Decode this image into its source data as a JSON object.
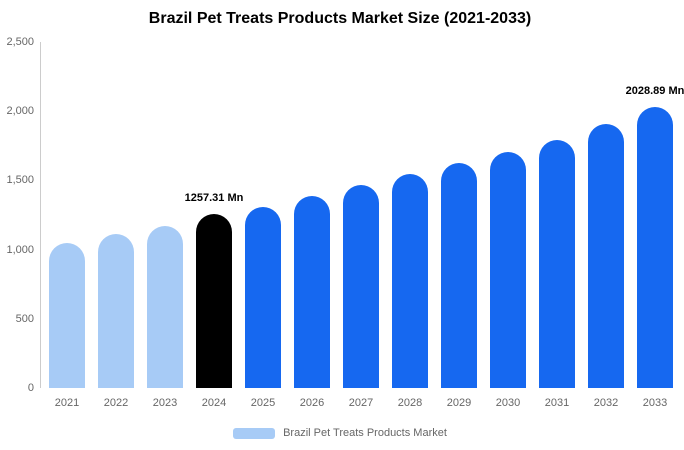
{
  "title": "Brazil Pet Treats Products Market Size (2021-2033)",
  "legend": {
    "label": "Brazil Pet Treats Products Market",
    "swatch_color": "#A7CBF6"
  },
  "colors": {
    "historical": "#A7CBF6",
    "base_year": "#000000",
    "forecast": "#1668F0"
  },
  "chart_data": {
    "type": "bar",
    "title": "Brazil Pet Treats Products Market Size (2021-2033)",
    "categories": [
      "2021",
      "2022",
      "2023",
      "2024",
      "2025",
      "2026",
      "2027",
      "2028",
      "2029",
      "2030",
      "2031",
      "2032",
      "2033"
    ],
    "values": [
      1050,
      1110,
      1170,
      1257.31,
      1310,
      1385,
      1470,
      1545,
      1625,
      1705,
      1795,
      1905,
      2028.89
    ],
    "bar_colors": [
      "#A7CBF6",
      "#A7CBF6",
      "#A7CBF6",
      "#000000",
      "#1668F0",
      "#1668F0",
      "#1668F0",
      "#1668F0",
      "#1668F0",
      "#1668F0",
      "#1668F0",
      "#1668F0",
      "#1668F0"
    ],
    "data_labels": {
      "2024": "1257.31 Mn",
      "2033": "2028.89 Mn"
    },
    "unit": "Mn",
    "xlabel": "",
    "ylabel": "",
    "ylim": [
      0,
      2500
    ],
    "y_ticks": [
      "2,500",
      "2,000",
      "1,500",
      "1,000",
      "500",
      "0"
    ],
    "grid": false,
    "legend_position": "bottom",
    "legend_entries": [
      "Brazil Pet Treats Products Market"
    ]
  }
}
